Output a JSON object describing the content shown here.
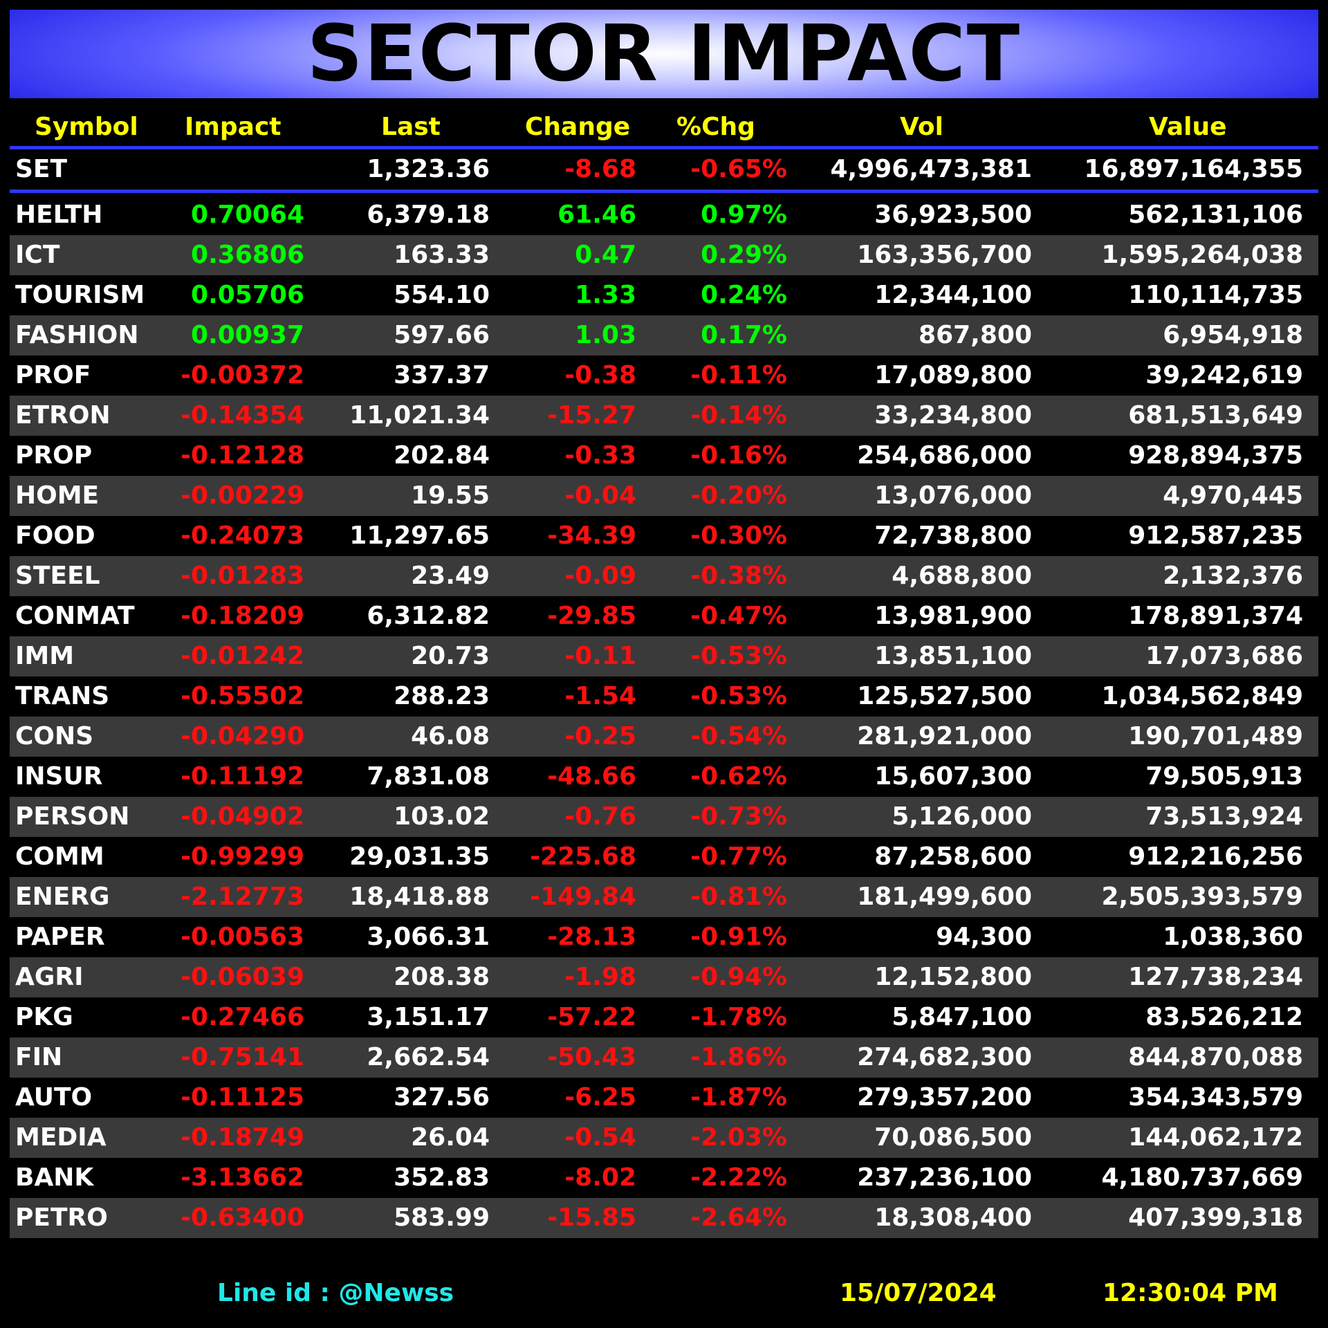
{
  "title": "SECTOR IMPACT",
  "columns": [
    "Symbol",
    "Impact",
    "Last",
    "Change",
    "%Chg",
    "Vol",
    "Value"
  ],
  "index": {
    "symbol": "SET",
    "impact": "",
    "last": "1,323.36",
    "change": "-8.68",
    "pct": "-0.65%",
    "vol": "4,996,473,381",
    "value": "16,897,164,355"
  },
  "rows": [
    {
      "symbol": "HELTH",
      "impact": "0.70064",
      "last": "6,379.18",
      "change": "61.46",
      "pct": "0.97%",
      "vol": "36,923,500",
      "value": "562,131,106"
    },
    {
      "symbol": "ICT",
      "impact": "0.36806",
      "last": "163.33",
      "change": "0.47",
      "pct": "0.29%",
      "vol": "163,356,700",
      "value": "1,595,264,038"
    },
    {
      "symbol": "TOURISM",
      "impact": "0.05706",
      "last": "554.10",
      "change": "1.33",
      "pct": "0.24%",
      "vol": "12,344,100",
      "value": "110,114,735"
    },
    {
      "symbol": "FASHION",
      "impact": "0.00937",
      "last": "597.66",
      "change": "1.03",
      "pct": "0.17%",
      "vol": "867,800",
      "value": "6,954,918"
    },
    {
      "symbol": "PROF",
      "impact": "-0.00372",
      "last": "337.37",
      "change": "-0.38",
      "pct": "-0.11%",
      "vol": "17,089,800",
      "value": "39,242,619"
    },
    {
      "symbol": "ETRON",
      "impact": "-0.14354",
      "last": "11,021.34",
      "change": "-15.27",
      "pct": "-0.14%",
      "vol": "33,234,800",
      "value": "681,513,649"
    },
    {
      "symbol": "PROP",
      "impact": "-0.12128",
      "last": "202.84",
      "change": "-0.33",
      "pct": "-0.16%",
      "vol": "254,686,000",
      "value": "928,894,375"
    },
    {
      "symbol": "HOME",
      "impact": "-0.00229",
      "last": "19.55",
      "change": "-0.04",
      "pct": "-0.20%",
      "vol": "13,076,000",
      "value": "4,970,445"
    },
    {
      "symbol": "FOOD",
      "impact": "-0.24073",
      "last": "11,297.65",
      "change": "-34.39",
      "pct": "-0.30%",
      "vol": "72,738,800",
      "value": "912,587,235"
    },
    {
      "symbol": "STEEL",
      "impact": "-0.01283",
      "last": "23.49",
      "change": "-0.09",
      "pct": "-0.38%",
      "vol": "4,688,800",
      "value": "2,132,376"
    },
    {
      "symbol": "CONMAT",
      "impact": "-0.18209",
      "last": "6,312.82",
      "change": "-29.85",
      "pct": "-0.47%",
      "vol": "13,981,900",
      "value": "178,891,374"
    },
    {
      "symbol": "IMM",
      "impact": "-0.01242",
      "last": "20.73",
      "change": "-0.11",
      "pct": "-0.53%",
      "vol": "13,851,100",
      "value": "17,073,686"
    },
    {
      "symbol": "TRANS",
      "impact": "-0.55502",
      "last": "288.23",
      "change": "-1.54",
      "pct": "-0.53%",
      "vol": "125,527,500",
      "value": "1,034,562,849"
    },
    {
      "symbol": "CONS",
      "impact": "-0.04290",
      "last": "46.08",
      "change": "-0.25",
      "pct": "-0.54%",
      "vol": "281,921,000",
      "value": "190,701,489"
    },
    {
      "symbol": "INSUR",
      "impact": "-0.11192",
      "last": "7,831.08",
      "change": "-48.66",
      "pct": "-0.62%",
      "vol": "15,607,300",
      "value": "79,505,913"
    },
    {
      "symbol": "PERSON",
      "impact": "-0.04902",
      "last": "103.02",
      "change": "-0.76",
      "pct": "-0.73%",
      "vol": "5,126,000",
      "value": "73,513,924"
    },
    {
      "symbol": "COMM",
      "impact": "-0.99299",
      "last": "29,031.35",
      "change": "-225.68",
      "pct": "-0.77%",
      "vol": "87,258,600",
      "value": "912,216,256"
    },
    {
      "symbol": "ENERG",
      "impact": "-2.12773",
      "last": "18,418.88",
      "change": "-149.84",
      "pct": "-0.81%",
      "vol": "181,499,600",
      "value": "2,505,393,579"
    },
    {
      "symbol": "PAPER",
      "impact": "-0.00563",
      "last": "3,066.31",
      "change": "-28.13",
      "pct": "-0.91%",
      "vol": "94,300",
      "value": "1,038,360"
    },
    {
      "symbol": "AGRI",
      "impact": "-0.06039",
      "last": "208.38",
      "change": "-1.98",
      "pct": "-0.94%",
      "vol": "12,152,800",
      "value": "127,738,234"
    },
    {
      "symbol": "PKG",
      "impact": "-0.27466",
      "last": "3,151.17",
      "change": "-57.22",
      "pct": "-1.78%",
      "vol": "5,847,100",
      "value": "83,526,212"
    },
    {
      "symbol": "FIN",
      "impact": "-0.75141",
      "last": "2,662.54",
      "change": "-50.43",
      "pct": "-1.86%",
      "vol": "274,682,300",
      "value": "844,870,088"
    },
    {
      "symbol": "AUTO",
      "impact": "-0.11125",
      "last": "327.56",
      "change": "-6.25",
      "pct": "-1.87%",
      "vol": "279,357,200",
      "value": "354,343,579"
    },
    {
      "symbol": "MEDIA",
      "impact": "-0.18749",
      "last": "26.04",
      "change": "-0.54",
      "pct": "-2.03%",
      "vol": "70,086,500",
      "value": "144,062,172"
    },
    {
      "symbol": "BANK",
      "impact": "-3.13662",
      "last": "352.83",
      "change": "-8.02",
      "pct": "-2.22%",
      "vol": "237,236,100",
      "value": "4,180,737,669"
    },
    {
      "symbol": "PETRO",
      "impact": "-0.63400",
      "last": "583.99",
      "change": "-15.85",
      "pct": "-2.64%",
      "vol": "18,308,400",
      "value": "407,399,318"
    }
  ],
  "footer": {
    "line_id": "Line id  : @Newss",
    "date": "15/07/2024",
    "time": "12:30:04 PM"
  },
  "colors": {
    "positive": "#00ff00",
    "negative": "#ff1010",
    "header_text": "#ffff00",
    "divider": "#2f36ff",
    "alt_row": "#3a3a3a",
    "line_id": "#22e6e6"
  }
}
